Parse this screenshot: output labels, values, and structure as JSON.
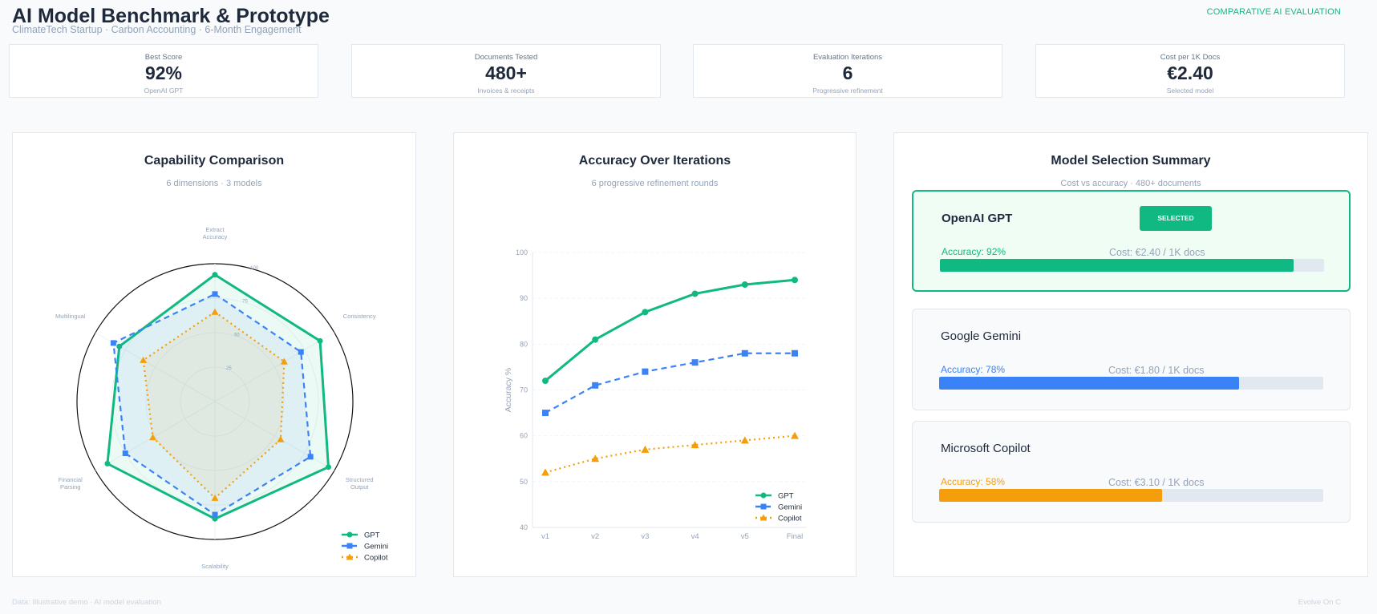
{
  "header": {
    "title": "AI Model Benchmark & Prototype",
    "subtitle": "ClimateTech Startup · Carbon Accounting · 6-Month Engagement",
    "tag": "COMPARATIVE AI EVALUATION"
  },
  "kpis": [
    {
      "label": "Best Score",
      "value": "92%",
      "sub": "OpenAI GPT"
    },
    {
      "label": "Documents Tested",
      "value": "480+",
      "sub": "Invoices & receipts"
    },
    {
      "label": "Evaluation Iterations",
      "value": "6",
      "sub": "Progressive refinement"
    },
    {
      "label": "Cost per 1K Docs",
      "value": "€2.40",
      "sub": "Selected model"
    }
  ],
  "colors": {
    "GPT": "#10b981",
    "Gemini": "#3b82f6",
    "Copilot": "#f59e0b"
  },
  "chart_data": [
    {
      "type": "radar",
      "title": "Capability Comparison",
      "subtitle": "6 dimensions · 3 models",
      "axes": [
        "Extract Accuracy",
        "Consistency",
        "Structured Output",
        "Scalability",
        "Financial Parsing",
        "Multilingual"
      ],
      "rlim": [
        0,
        100
      ],
      "rticks": [
        "25",
        "50",
        "75",
        "100"
      ],
      "legend": "bottom-right",
      "series": [
        {
          "name": "GPT",
          "values": [
            92,
            88,
            95,
            85,
            90,
            80
          ],
          "style": "solid",
          "marker": "circle"
        },
        {
          "name": "Gemini",
          "values": [
            78,
            72,
            80,
            82,
            75,
            85
          ],
          "style": "dashed",
          "marker": "square"
        },
        {
          "name": "Copilot",
          "values": [
            65,
            58,
            55,
            70,
            52,
            60
          ],
          "style": "dotted",
          "marker": "triangle"
        }
      ]
    },
    {
      "type": "line",
      "title": "Accuracy Over Iterations",
      "subtitle": "6 progressive refinement rounds",
      "ylabel": "Accuracy %",
      "ylim": [
        40,
        100
      ],
      "yticks": [
        "40",
        "50",
        "60",
        "70",
        "80",
        "90",
        "100"
      ],
      "categories": [
        "v1",
        "v2",
        "v3",
        "v4",
        "v5",
        "Final"
      ],
      "grid": true,
      "legend": "bottom-right",
      "series": [
        {
          "name": "GPT",
          "values": [
            72,
            81,
            87,
            91,
            93,
            94
          ],
          "style": "solid",
          "marker": "circle"
        },
        {
          "name": "Gemini",
          "values": [
            65,
            71,
            74,
            76,
            78,
            78
          ],
          "style": "dashed",
          "marker": "square"
        },
        {
          "name": "Copilot",
          "values": [
            52,
            55,
            57,
            58,
            59,
            60
          ],
          "style": "dotted",
          "marker": "triangle"
        }
      ]
    }
  ],
  "summary": {
    "title": "Model Selection Summary",
    "subtitle": "Cost vs accuracy · 480+ documents",
    "models": [
      {
        "name": "OpenAI GPT",
        "accuracy": "Accuracy: 92%",
        "accuracy_pct": 92,
        "cost": "Cost: €2.40 / 1K docs",
        "badge": "SELECTED",
        "color": "#10b981"
      },
      {
        "name": "Google Gemini",
        "accuracy": "Accuracy: 78%",
        "accuracy_pct": 78,
        "cost": "Cost: €1.80 / 1K docs",
        "color": "#3b82f6"
      },
      {
        "name": "Microsoft Copilot",
        "accuracy": "Accuracy: 58%",
        "accuracy_pct": 58,
        "cost": "Cost: €3.10 / 1K docs",
        "color": "#f59e0b"
      }
    ]
  },
  "footer": {
    "left": "Data: Illustrative demo · AI model evaluation",
    "right": "Evolve On C"
  }
}
